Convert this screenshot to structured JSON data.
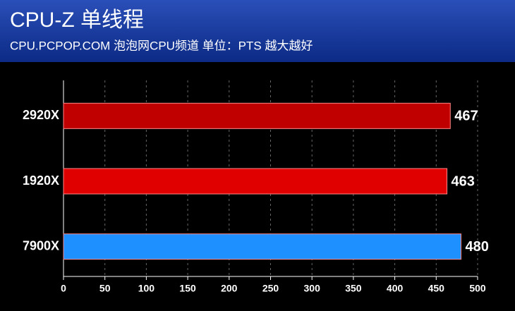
{
  "chart_data": {
    "type": "bar",
    "orientation": "horizontal",
    "title": "CPU-Z 单线程",
    "subtitle": "CPU.PCPOP.COM 泡泡网CPU频道 单位：PTS 越大越好",
    "categories": [
      "2920X",
      "1920X",
      "7900X"
    ],
    "values": [
      467,
      463,
      480
    ],
    "colors": [
      "#c00000",
      "#e00000",
      "#1e90ff"
    ],
    "xlim": [
      0,
      500
    ],
    "xticks": [
      0,
      50,
      100,
      150,
      200,
      250,
      300,
      350,
      400,
      450,
      500
    ],
    "grid": true
  }
}
